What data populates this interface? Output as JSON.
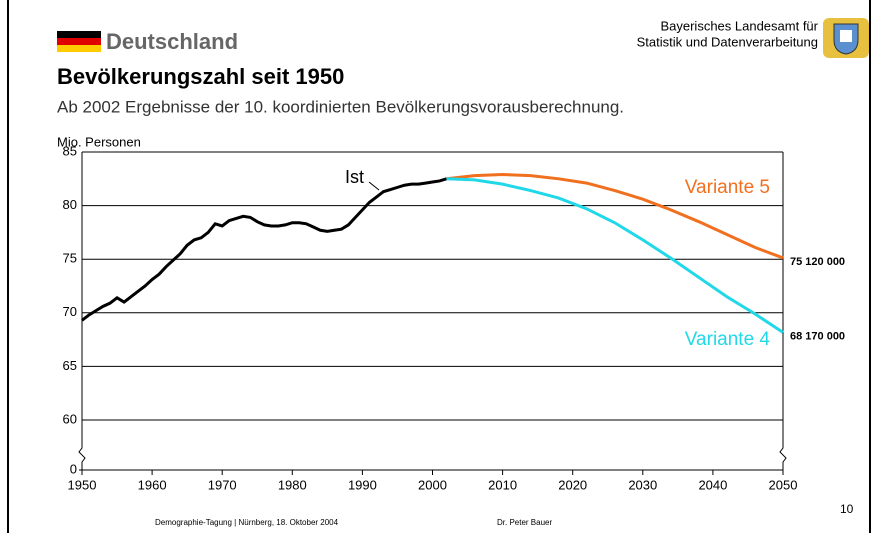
{
  "header": {
    "country": "Deutschland",
    "office": [
      "Bayerisches Landesamt für",
      "Statistik und Datenverarbeitung"
    ]
  },
  "chart_data": {
    "type": "line",
    "title": "Bevölkerungszahl seit 1950",
    "subtitle": "Ab 2002 Ergebnisse der 10. koordinierten Bevölkerungsvorausberechnung.",
    "y_label": "Mio. Personen",
    "xlim": [
      1950,
      2050
    ],
    "xticks": [
      1950,
      1960,
      1970,
      1980,
      1990,
      2000,
      2010,
      2020,
      2030,
      2040,
      2050
    ],
    "ylim": [
      0,
      85
    ],
    "yticks": [
      0,
      60,
      65,
      70,
      75,
      80,
      85
    ],
    "axis_break": [
      0,
      60
    ],
    "grid": true,
    "series": [
      {
        "name": "Ist",
        "color": "#000000",
        "x": [
          1950,
          1951,
          1952,
          1953,
          1954,
          1955,
          1956,
          1957,
          1958,
          1959,
          1960,
          1961,
          1962,
          1963,
          1964,
          1965,
          1966,
          1967,
          1968,
          1969,
          1970,
          1971,
          1972,
          1973,
          1974,
          1975,
          1976,
          1977,
          1978,
          1979,
          1980,
          1981,
          1982,
          1983,
          1984,
          1985,
          1986,
          1987,
          1988,
          1989,
          1990,
          1991,
          1992,
          1993,
          1994,
          1995,
          1996,
          1997,
          1998,
          1999,
          2000,
          2001,
          2002
        ],
        "values": [
          69.3,
          69.8,
          70.2,
          70.6,
          70.9,
          71.4,
          71.0,
          71.5,
          72.0,
          72.5,
          73.1,
          73.6,
          74.3,
          74.9,
          75.5,
          76.3,
          76.8,
          77.0,
          77.5,
          78.3,
          78.1,
          78.6,
          78.8,
          79.0,
          78.9,
          78.5,
          78.2,
          78.1,
          78.1,
          78.2,
          78.4,
          78.4,
          78.3,
          78.0,
          77.7,
          77.6,
          77.7,
          77.8,
          78.2,
          78.9,
          79.6,
          80.3,
          80.8,
          81.3,
          81.5,
          81.7,
          81.9,
          82.0,
          82.0,
          82.1,
          82.2,
          82.3,
          82.5
        ]
      },
      {
        "name": "Variante 5",
        "color": "#f07020",
        "x": [
          2002,
          2006,
          2010,
          2014,
          2018,
          2022,
          2026,
          2030,
          2034,
          2038,
          2042,
          2046,
          2050
        ],
        "values": [
          82.5,
          82.8,
          82.9,
          82.8,
          82.5,
          82.1,
          81.4,
          80.6,
          79.6,
          78.5,
          77.3,
          76.1,
          75.12
        ],
        "end_label": "75 120 000"
      },
      {
        "name": "Variante 4",
        "color": "#20d8e8",
        "x": [
          2002,
          2006,
          2010,
          2014,
          2018,
          2022,
          2026,
          2030,
          2034,
          2038,
          2042,
          2046,
          2050
        ],
        "values": [
          82.5,
          82.4,
          82.0,
          81.4,
          80.7,
          79.7,
          78.4,
          76.8,
          75.1,
          73.3,
          71.5,
          69.9,
          68.17
        ],
        "end_label": "68 170 000"
      }
    ]
  },
  "footer": {
    "event": "Demographie-Tagung  |  Nürnberg, 18. Oktober 2004",
    "author": "Dr. Peter Bauer",
    "page": "10"
  }
}
